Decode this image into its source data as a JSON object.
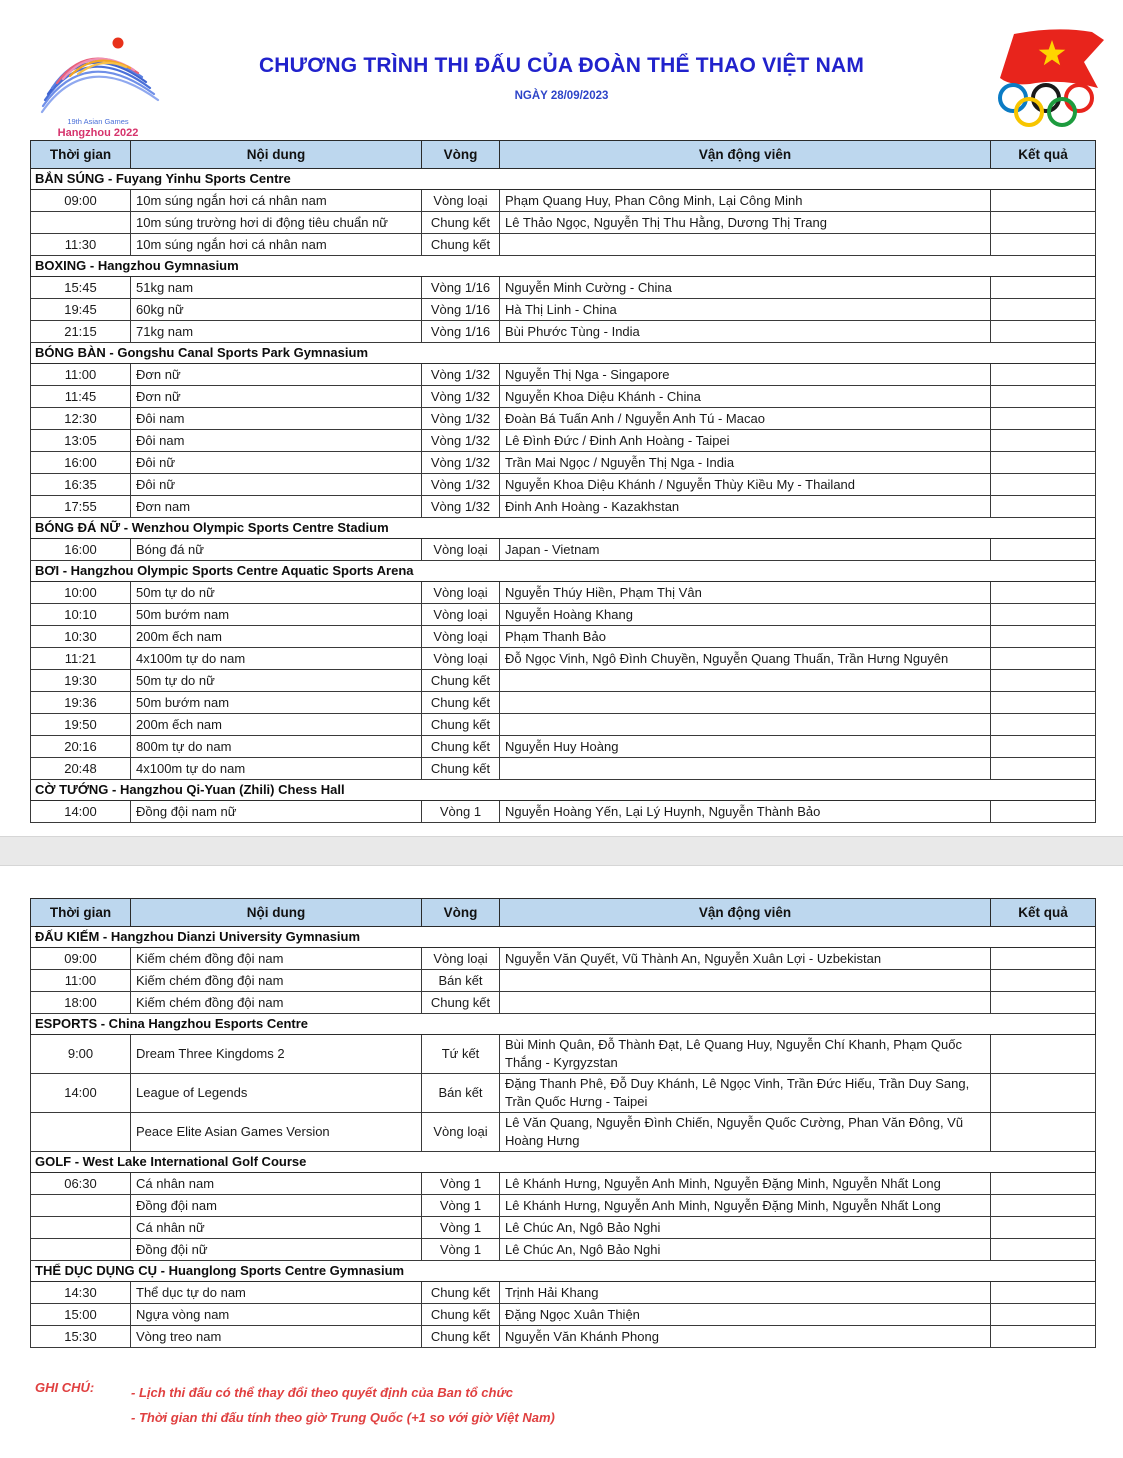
{
  "page": {
    "title": "CHƯƠNG TRÌNH THI ĐẤU CỦA ĐOÀN THỂ THAO VIỆT NAM",
    "date_line": "NGÀY 28/09/2023"
  },
  "logos": {
    "left_line1": "19th Asian Games",
    "left_line2": "Hangzhou 2022"
  },
  "colors": {
    "title_blue": "#2122cc",
    "table_header_bg": "#bdd7ee",
    "note_red": "#e04040",
    "band_gray": "#e9e9e9",
    "flag_red": "#e8241c",
    "star_yellow": "#ffd400"
  },
  "columns": [
    "Thời gian",
    "Nội dung",
    "Vòng",
    "Vận động viên",
    "Kết quả"
  ],
  "tables": [
    {
      "sections": [
        {
          "title": "BẮN SÚNG - Fuyang Yinhu Sports Centre",
          "rows": [
            {
              "time": "09:00",
              "event": "10m súng ngắn hơi cá nhân nam",
              "round": "Vòng loại",
              "athletes": "Phạm Quang Huy, Phan Công Minh, Lại Công Minh",
              "result": ""
            },
            {
              "time": "",
              "event": "10m súng trường hơi di động tiêu chuẩn nữ",
              "round": "Chung kết",
              "athletes": "Lê Thảo Ngọc, Nguyễn Thị Thu Hằng, Dương Thị Trang",
              "result": ""
            },
            {
              "time": "11:30",
              "event": "10m súng ngắn hơi cá nhân nam",
              "round": "Chung kết",
              "athletes": "",
              "result": ""
            }
          ]
        },
        {
          "title": "BOXING - Hangzhou Gymnasium",
          "rows": [
            {
              "time": "15:45",
              "event": "51kg nam",
              "round": "Vòng 1/16",
              "athletes": "Nguyễn Minh Cường - China",
              "result": ""
            },
            {
              "time": "19:45",
              "event": "60kg nữ",
              "round": "Vòng 1/16",
              "athletes": "Hà Thị Linh - China",
              "result": ""
            },
            {
              "time": "21:15",
              "event": "71kg nam",
              "round": "Vòng 1/16",
              "athletes": "Bùi Phước Tùng - India",
              "result": ""
            }
          ]
        },
        {
          "title": "BÓNG BÀN - Gongshu Canal Sports Park Gymnasium",
          "rows": [
            {
              "time": "11:00",
              "event": "Đơn nữ",
              "round": "Vòng 1/32",
              "athletes": "Nguyễn Thị Nga - Singapore",
              "result": ""
            },
            {
              "time": "11:45",
              "event": "Đơn nữ",
              "round": "Vòng 1/32",
              "athletes": "Nguyễn Khoa Diệu Khánh - China",
              "result": ""
            },
            {
              "time": "12:30",
              "event": "Đôi nam",
              "round": "Vòng 1/32",
              "athletes": "Đoàn Bá Tuấn Anh / Nguyễn Anh Tú - Macao",
              "result": ""
            },
            {
              "time": "13:05",
              "event": "Đôi nam",
              "round": "Vòng 1/32",
              "athletes": "Lê Đình Đức / Đinh Anh Hoàng - Taipei",
              "result": ""
            },
            {
              "time": "16:00",
              "event": "Đôi nữ",
              "round": "Vòng 1/32",
              "athletes": "Trần Mai Ngọc / Nguyễn Thị Nga - India",
              "result": ""
            },
            {
              "time": "16:35",
              "event": "Đôi nữ",
              "round": "Vòng 1/32",
              "athletes": "Nguyễn Khoa Diệu Khánh / Nguyễn Thùy Kiều My - Thailand",
              "result": ""
            },
            {
              "time": "17:55",
              "event": "Đơn nam",
              "round": "Vòng 1/32",
              "athletes": "Đinh Anh Hoàng - Kazakhstan",
              "result": ""
            }
          ]
        },
        {
          "title": "BÓNG ĐÁ NỮ - Wenzhou Olympic Sports Centre Stadium",
          "rows": [
            {
              "time": "16:00",
              "event": "Bóng đá nữ",
              "round": "Vòng loại",
              "athletes": "Japan - Vietnam",
              "result": ""
            }
          ]
        },
        {
          "title": "BƠI - Hangzhou Olympic Sports Centre Aquatic Sports Arena",
          "rows": [
            {
              "time": "10:00",
              "event": "50m tự do nữ",
              "round": "Vòng loại",
              "athletes": "Nguyễn Thúy Hiền, Phạm Thị Vân",
              "result": ""
            },
            {
              "time": "10:10",
              "event": "50m bướm nam",
              "round": "Vòng loại",
              "athletes": "Nguyễn Hoàng Khang",
              "result": ""
            },
            {
              "time": "10:30",
              "event": "200m ếch nam",
              "round": "Vòng loại",
              "athletes": "Phạm Thanh Bảo",
              "result": ""
            },
            {
              "time": "11:21",
              "event": "4x100m tự do nam",
              "round": "Vòng loại",
              "athletes": "Đỗ Ngọc Vinh, Ngô Đình Chuyền, Nguyễn Quang Thuấn, Trần Hưng Nguyên",
              "result": ""
            },
            {
              "time": "19:30",
              "event": "50m tự do nữ",
              "round": "Chung kết",
              "athletes": "",
              "result": ""
            },
            {
              "time": "19:36",
              "event": "50m bướm nam",
              "round": "Chung kết",
              "athletes": "",
              "result": ""
            },
            {
              "time": "19:50",
              "event": "200m ếch nam",
              "round": "Chung kết",
              "athletes": "",
              "result": ""
            },
            {
              "time": "20:16",
              "event": "800m tự do nam",
              "round": "Chung kết",
              "athletes": "Nguyễn Huy Hoàng",
              "result": ""
            },
            {
              "time": "20:48",
              "event": "4x100m tự do nam",
              "round": "Chung kết",
              "athletes": "",
              "result": ""
            }
          ]
        },
        {
          "title": "CỜ TƯỚNG - Hangzhou Qi-Yuan (Zhili) Chess Hall",
          "rows": [
            {
              "time": "14:00",
              "event": "Đồng đội nam nữ",
              "round": "Vòng 1",
              "athletes": "Nguyễn Hoàng Yến, Lại Lý Huynh, Nguyễn Thành Bảo",
              "result": ""
            }
          ]
        }
      ]
    },
    {
      "sections": [
        {
          "title": "ĐẤU KIẾM - Hangzhou Dianzi University Gymnasium",
          "rows": [
            {
              "time": "09:00",
              "event": "Kiếm chém đồng đội nam",
              "round": "Vòng loại",
              "athletes": "Nguyễn Văn Quyết, Vũ Thành An, Nguyễn Xuân Lợi - Uzbekistan",
              "result": ""
            },
            {
              "time": "11:00",
              "event": "Kiếm chém đồng đội nam",
              "round": "Bán kết",
              "athletes": "",
              "result": ""
            },
            {
              "time": "18:00",
              "event": "Kiếm chém đồng đội nam",
              "round": "Chung kết",
              "athletes": "",
              "result": ""
            }
          ]
        },
        {
          "title": "ESPORTS - China Hangzhou Esports Centre",
          "rows": [
            {
              "time": "9:00",
              "event": "Dream Three Kingdoms 2",
              "round": "Tứ kết",
              "athletes": "Bùi Minh Quân, Đỗ Thành Đạt, Lê Quang Huy, Nguyễn Chí Khanh, Phạm Quốc Thắng - Kyrgyzstan",
              "result": ""
            },
            {
              "time": "14:00",
              "event": "League of Legends",
              "round": "Bán kết",
              "athletes": "Đặng Thanh Phê, Đỗ Duy Khánh, Lê Ngọc Vinh, Trần Đức Hiếu, Trần Duy Sang, Trần Quốc Hưng - Taipei",
              "result": ""
            },
            {
              "time": "",
              "event": "Peace Elite Asian Games Version",
              "round": "Vòng loại",
              "athletes": "Lê Văn Quang, Nguyễn Đình Chiến, Nguyễn Quốc Cường, Phan Văn Đông, Vũ Hoàng Hưng",
              "result": ""
            }
          ]
        },
        {
          "title": "GOLF - West Lake International Golf Course",
          "rows": [
            {
              "time": "06:30",
              "event": "Cá nhân nam",
              "round": "Vòng 1",
              "athletes": "Lê Khánh Hưng, Nguyễn Anh Minh, Nguyễn Đặng Minh, Nguyễn Nhất Long",
              "result": ""
            },
            {
              "time": "",
              "event": "Đồng đội nam",
              "round": "Vòng 1",
              "athletes": "Lê Khánh Hưng, Nguyễn Anh Minh, Nguyễn Đặng Minh, Nguyễn Nhất Long",
              "result": ""
            },
            {
              "time": "",
              "event": "Cá nhân nữ",
              "round": "Vòng 1",
              "athletes": "Lê Chúc An, Ngô Bảo Nghi",
              "result": ""
            },
            {
              "time": "",
              "event": "Đồng đội nữ",
              "round": "Vòng 1",
              "athletes": "Lê Chúc An, Ngô Bảo Nghi",
              "result": ""
            }
          ]
        },
        {
          "title": "THỂ DỤC DỤNG CỤ - Huanglong Sports Centre Gymnasium",
          "rows": [
            {
              "time": "14:30",
              "event": "Thể dục tự do nam",
              "round": "Chung kết",
              "athletes": "Trịnh Hải Khang",
              "result": ""
            },
            {
              "time": "15:00",
              "event": "Ngựa vòng nam",
              "round": "Chung kết",
              "athletes": "Đặng Ngọc Xuân Thiện",
              "result": ""
            },
            {
              "time": "15:30",
              "event": "Vòng treo nam",
              "round": "Chung kết",
              "athletes": "Nguyễn Văn Khánh Phong",
              "result": ""
            }
          ]
        }
      ]
    }
  ],
  "notes": {
    "label": "GHI CHÚ:",
    "items": [
      "- Lịch thi đấu có thể thay đổi theo quyết định của Ban tổ chức",
      "- Thời gian thi đấu tính theo giờ Trung Quốc (+1 so với giờ Việt Nam)"
    ]
  }
}
